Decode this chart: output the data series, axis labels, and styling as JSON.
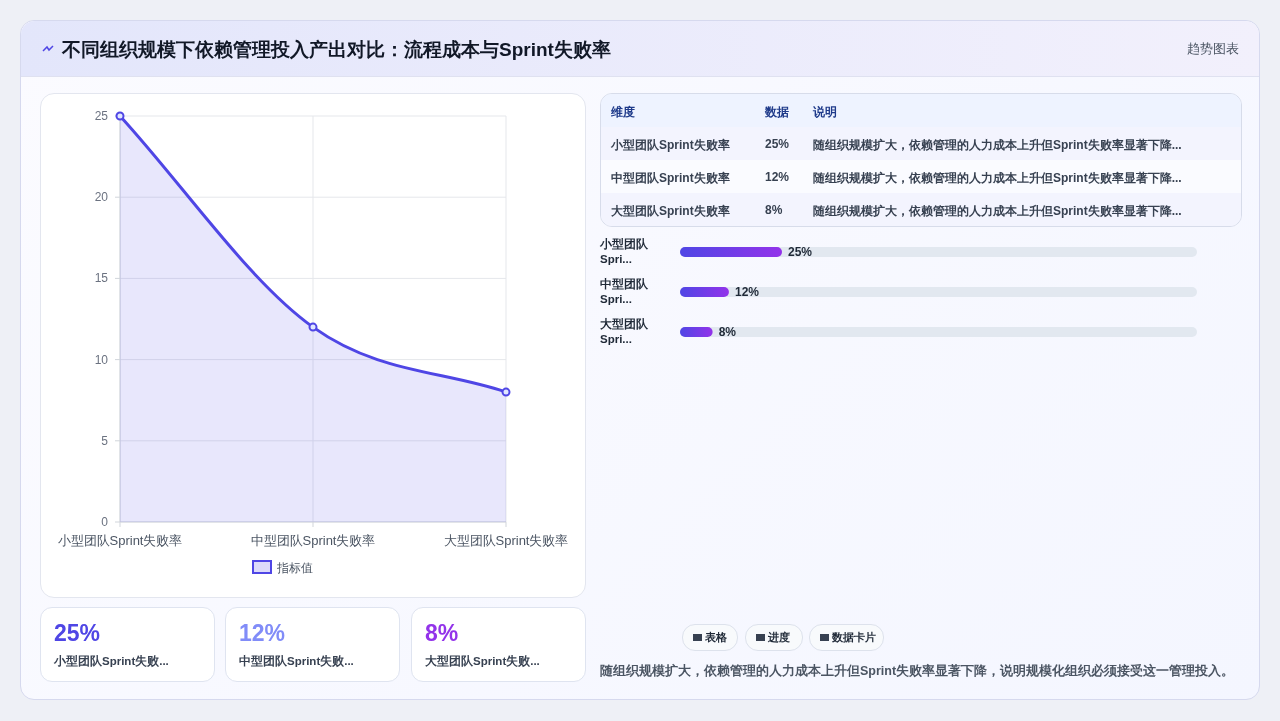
{
  "chart_data": [
    {
      "type": "other",
      "title": "不同组织规模下依赖管理投入产出对比：流程成本与Sprint失败率",
      "subtitle": "趋势图表"
    },
    {
      "type": "line",
      "categories": [
        "小型团队Sprint失败率",
        "中型团队Sprint失败率",
        "大型团队Sprint失败率"
      ],
      "series": [
        {
          "name": "指标值",
          "color": "#4f46e5",
          "type": "area",
          "values": [
            25,
            12,
            8
          ]
        }
      ],
      "ylim": [
        0,
        25
      ],
      "yticks": [
        0,
        5,
        10,
        15,
        20,
        25
      ],
      "grid": true,
      "legend": "bottom",
      "marker": "circle"
    },
    {
      "type": "other",
      "annotations": [
        "维度",
        "数据",
        "说明",
        "小型团队Sprint失败率",
        "25%",
        "随组织规模扩大，依赖管理的人力成本上升但Sprint失败率显著下降...",
        "中型团队Sprint失败率",
        "12%",
        "随组织规模扩大，依赖管理的人力成本上升但Sprint失败率显著下降...",
        "大型团队Sprint失败率",
        "8%",
        "随组织规模扩大，依赖管理的人力成本上升但Sprint失败率显著下降..."
      ]
    },
    {
      "type": "bar",
      "orientation": "horizontal",
      "categories": [
        "小型团队Spri...",
        "中型团队Spri...",
        "大型团队Spri..."
      ],
      "values": [
        25,
        12,
        8
      ],
      "color": "#4f46e5",
      "data_labels": true,
      "value_labels": [
        "25%",
        "12%",
        "8%"
      ]
    },
    {
      "type": "other",
      "annotations": [
        "25%",
        "小型团队Sprint失败...",
        "12%",
        "中型团队Sprint失败...",
        "8%",
        "大型团队Sprint失败..."
      ],
      "colors": [
        "#4f46e5",
        "#818cf8",
        "#9333ea"
      ]
    },
    {
      "type": "other",
      "annotations": [
        "表格",
        "进度",
        "数据卡片",
        "随组织规模扩大，依赖管理的人力成本上升但Sprint失败率显著下降，说明规模化组织必须接受这一管理投入。"
      ]
    }
  ]
}
